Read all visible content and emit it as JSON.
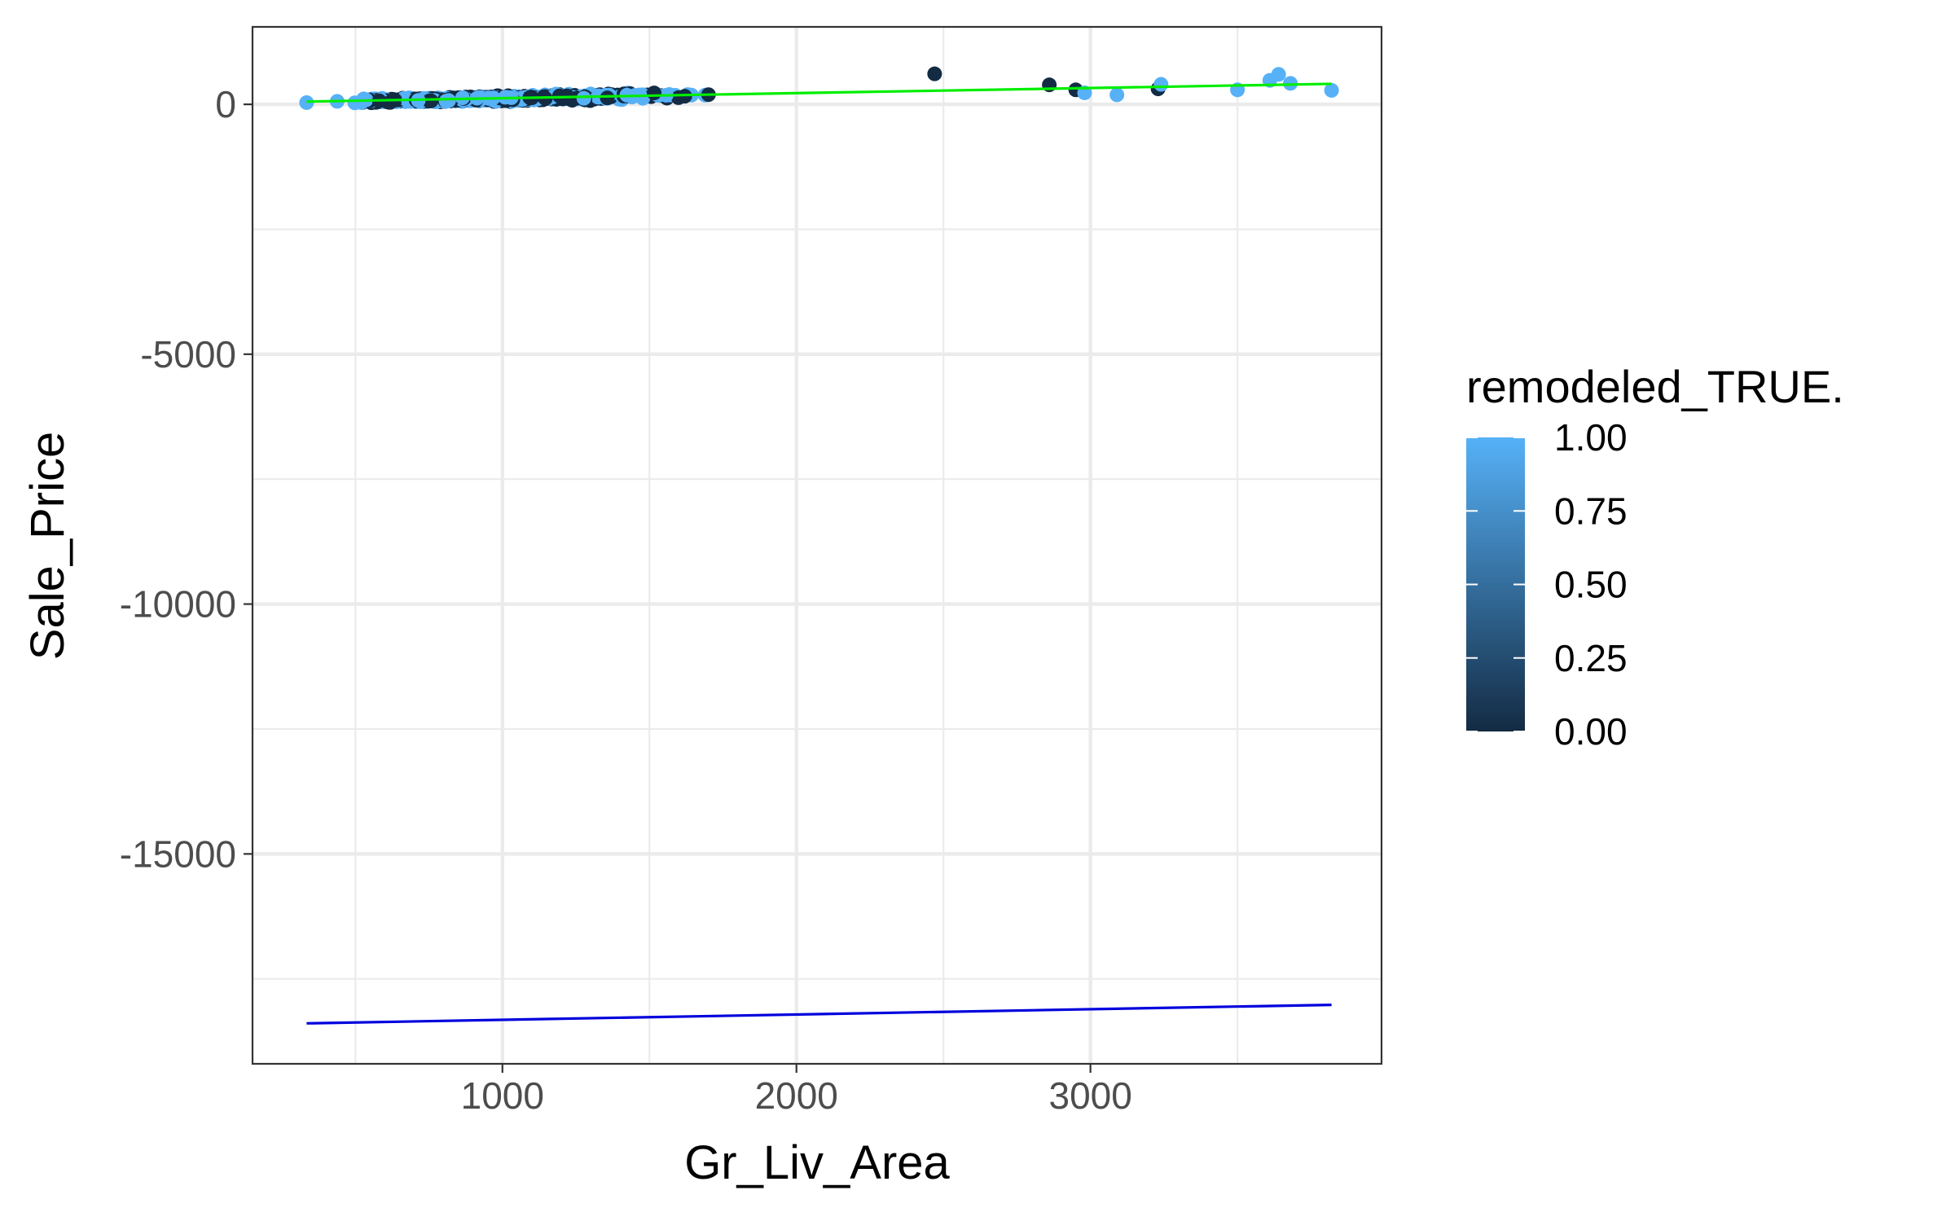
{
  "chart_data": {
    "type": "scatter",
    "title": "",
    "xlabel": "Gr_Liv_Area",
    "ylabel": "Sale_Price",
    "xlim": [
      150,
      3990
    ],
    "ylim": [
      -19200,
      1550
    ],
    "x_ticks": [
      1000,
      2000,
      3000
    ],
    "y_ticks": [
      0,
      -5000,
      -10000,
      -15000
    ],
    "x_tick_labels": [
      "1000",
      "2000",
      "3000"
    ],
    "y_tick_labels": [
      "0",
      "-5000",
      "-10000",
      "-15000"
    ],
    "grid": true,
    "legend": {
      "title": "remodeled_TRUE.",
      "type": "colorbar",
      "placement": "right",
      "low_color": "#132B43",
      "high_color": "#56B1F7",
      "breaks": [
        0,
        0.25,
        0.5,
        0.75,
        1
      ],
      "labels": [
        "0.00",
        "0.25",
        "0.50",
        "0.75",
        "1.00"
      ]
    },
    "lines": [
      {
        "color": "#00ee00",
        "x": [
          334,
          3820
        ],
        "y": [
          55,
          410
        ]
      },
      {
        "color": "#0000dd",
        "x": [
          334,
          3820
        ],
        "y": [
          -18390,
          -18020
        ]
      }
    ],
    "points_seed": 7,
    "points_count": 650,
    "points_highlight": [
      {
        "x": 334,
        "y": 35,
        "remodeled": 1
      },
      {
        "x": 438,
        "y": 60,
        "remodeled": 1
      },
      {
        "x": 498,
        "y": 30,
        "remodeled": 1
      },
      {
        "x": 2470,
        "y": 610,
        "remodeled": 0
      },
      {
        "x": 2860,
        "y": 390,
        "remodeled": 0
      },
      {
        "x": 2950,
        "y": 290,
        "remodeled": 0
      },
      {
        "x": 2980,
        "y": 230,
        "remodeled": 1
      },
      {
        "x": 3090,
        "y": 190,
        "remodeled": 1
      },
      {
        "x": 3230,
        "y": 310,
        "remodeled": 0
      },
      {
        "x": 3240,
        "y": 400,
        "remodeled": 1
      },
      {
        "x": 3500,
        "y": 290,
        "remodeled": 1
      },
      {
        "x": 3610,
        "y": 480,
        "remodeled": 1
      },
      {
        "x": 3640,
        "y": 600,
        "remodeled": 1
      },
      {
        "x": 3680,
        "y": 420,
        "remodeled": 1
      },
      {
        "x": 3820,
        "y": 280,
        "remodeled": 1
      }
    ]
  }
}
